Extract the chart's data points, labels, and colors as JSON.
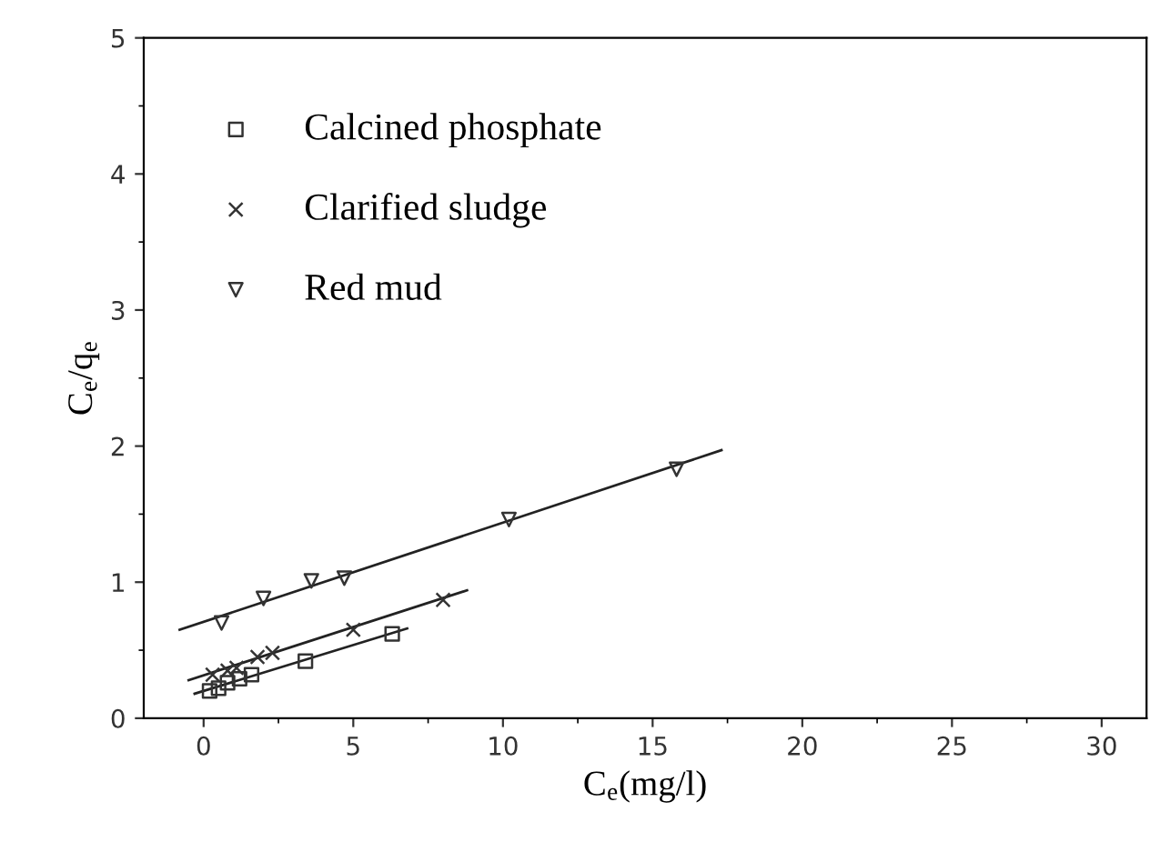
{
  "chart_data": {
    "type": "scatter",
    "xlabel": "C$_{e}$(mg/l)",
    "ylabel": "C$_{e}$/q$_{e}$",
    "xlim": [
      -2,
      31.5
    ],
    "ylim": [
      0,
      5
    ],
    "xticks": [
      0,
      5,
      10,
      15,
      20,
      25,
      30
    ],
    "yticks": [
      0,
      1,
      2,
      3,
      4,
      5
    ],
    "legend": "top left",
    "grid": false,
    "series": [
      {
        "name": "Calcined phosphate",
        "marker": "square",
        "color": "#333333",
        "x": [
          0.2,
          0.5,
          0.8,
          1.2,
          1.6,
          3.4,
          6.3
        ],
        "values": [
          0.2,
          0.22,
          0.26,
          0.29,
          0.32,
          0.42,
          0.62
        ]
      },
      {
        "name": "Clarified sludge",
        "marker": "cross",
        "color": "#333333",
        "x": [
          0.3,
          0.8,
          1.1,
          1.8,
          2.3,
          5.0,
          8.0
        ],
        "values": [
          0.32,
          0.35,
          0.37,
          0.45,
          0.48,
          0.65,
          0.87
        ]
      },
      {
        "name": "Red mud",
        "marker": "triangle",
        "color": "#333333",
        "x": [
          0.6,
          2.0,
          3.6,
          4.7,
          10.2,
          15.8
        ],
        "values": [
          0.7,
          0.88,
          1.01,
          1.03,
          1.46,
          1.83
        ]
      },
      {
        "type": "line",
        "color": "#222222",
        "x": [
          -0.3,
          6.8
        ],
        "values": [
          0.18,
          0.66
        ]
      },
      {
        "type": "line",
        "color": "#222222",
        "x": [
          -0.5,
          8.8
        ],
        "values": [
          0.28,
          0.94
        ]
      },
      {
        "type": "line",
        "color": "#222222",
        "x": [
          -0.8,
          17.3
        ],
        "values": [
          0.65,
          1.97
        ]
      }
    ]
  }
}
